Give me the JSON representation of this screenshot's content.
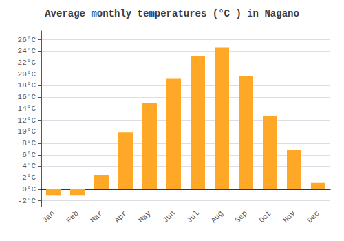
{
  "chart_data": {
    "type": "bar",
    "title": "Average monthly temperatures (°C ) in Nagano",
    "categories": [
      "Jan",
      "Feb",
      "Mar",
      "Apr",
      "May",
      "Jun",
      "Jul",
      "Aug",
      "Sep",
      "Oct",
      "Nov",
      "Dec"
    ],
    "values": [
      -1.0,
      -1.0,
      2.5,
      9.9,
      15.0,
      19.2,
      23.1,
      24.7,
      19.7,
      12.8,
      6.8,
      1.1
    ],
    "color": "#FFA726",
    "ylim": [
      -3.0,
      27.5
    ],
    "yticks": [
      {
        "value": -2,
        "label": "-2°C"
      },
      {
        "value": 0,
        "label": "0°C"
      },
      {
        "value": 2,
        "label": "2°C"
      },
      {
        "value": 4,
        "label": "4°C"
      },
      {
        "value": 6,
        "label": "6°C"
      },
      {
        "value": 8,
        "label": "8°C"
      },
      {
        "value": 10,
        "label": "10°C"
      },
      {
        "value": 12,
        "label": "12°C"
      },
      {
        "value": 14,
        "label": "14°C"
      },
      {
        "value": 16,
        "label": "16°C"
      },
      {
        "value": 18,
        "label": "18°C"
      },
      {
        "value": 20,
        "label": "20°C"
      },
      {
        "value": 22,
        "label": "22°C"
      },
      {
        "value": 24,
        "label": "24°C"
      },
      {
        "value": 26,
        "label": "26°C"
      }
    ],
    "grid": true
  }
}
